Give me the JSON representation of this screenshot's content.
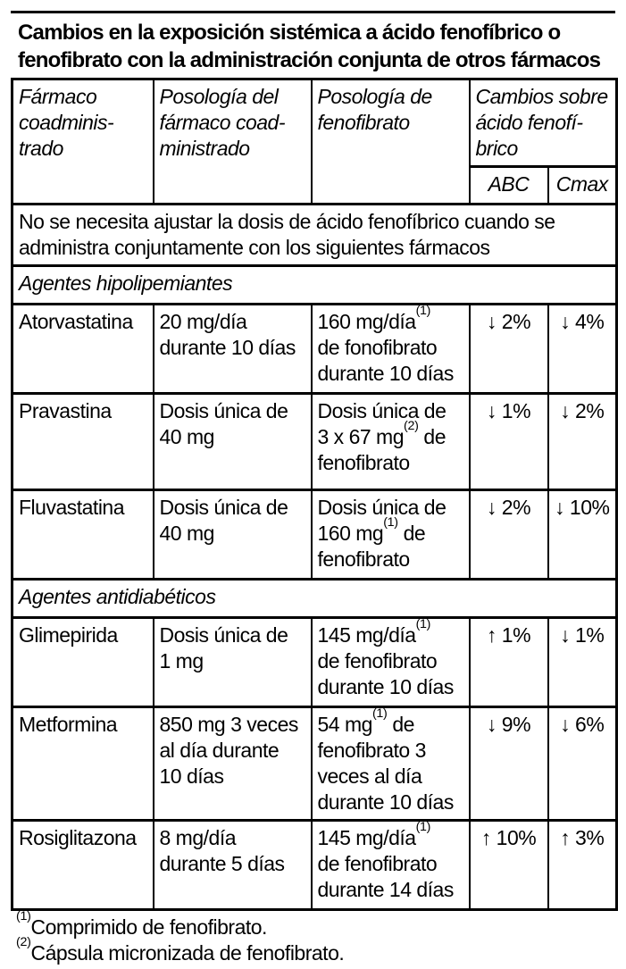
{
  "page": {
    "title": "Cambios en la exposición sistémica a ácido fenofíbrico o\nfenofibrato con la administración conjunta de otros fármacos"
  },
  "table": {
    "header": {
      "drug_col": "Fármaco\ncoadminis-\ntrado",
      "co_dose_col": "Posología del\nfármaco coad-\nministrado",
      "feno_dose_col": "Posología de\nfenofibrato",
      "changes_col": "Cambios sobre\nácido fenofí-\nbrico",
      "abc_col": "ABC",
      "cmax_col": "Cmax"
    },
    "note_row": "No se necesita ajustar la dosis de ácido fenofíbrico cuando se\nadministra conjuntamente con los siguientes fármacos",
    "sections": [
      {
        "label": "Agentes hipolipemiantes",
        "rows": [
          {
            "drug": "Atorvastatina",
            "co_dose": "20 mg/día\ndurante 10 días",
            "feno_pre": "160 mg/día",
            "feno_sup": "(1)",
            "feno_post": "\nde fonofibrato\ndurante 10 días",
            "abc": "↓ 2%",
            "cmax": "↓ 4%"
          },
          {
            "drug": "Pravastina",
            "co_dose": "Dosis única de\n40 mg",
            "feno_pre": "Dosis única de\n3 x 67 mg",
            "feno_sup": "(2)",
            "feno_post": " de\nfenofibrato",
            "abc": "↓ 1%",
            "cmax": "↓ 2%"
          },
          {
            "drug": "Fluvastatina",
            "co_dose": "Dosis única de\n40 mg",
            "feno_pre": "Dosis única de\n160 mg",
            "feno_sup": "(1)",
            "feno_post": " de\nfenofibrato",
            "abc": "↓ 2%",
            "cmax": "↓ 10%"
          }
        ]
      },
      {
        "label": "Agentes antidiabéticos",
        "rows": [
          {
            "drug": "Glimepirida",
            "co_dose": "Dosis única de\n1 mg",
            "feno_pre": "145 mg/día",
            "feno_sup": "(1)",
            "feno_post": "\nde fenofibrato\ndurante 10 días",
            "abc": "↑ 1%",
            "cmax": "↓ 1%"
          },
          {
            "drug": "Metformina",
            "co_dose": "850 mg 3 veces\nal día durante\n10 días",
            "feno_pre": "54 mg",
            "feno_sup": "(1)",
            "feno_post": " de\nfenofibrato 3\nveces al día\ndurante 10 días",
            "abc": "↓ 9%",
            "cmax": "↓ 6%"
          },
          {
            "drug": "Rosiglitazona",
            "co_dose": "8 mg/día\ndurante 5 días",
            "feno_pre": "145 mg/día",
            "feno_sup": "(1)",
            "feno_post": "\nde fenofibrato\ndurante 14 días",
            "abc": "↑ 10%",
            "cmax": "↑ 3%"
          }
        ]
      }
    ],
    "footnotes": [
      {
        "sup": "(1)",
        "text": "Comprimido de fenofibrato."
      },
      {
        "sup": "(2)",
        "text": "Cápsula micronizada de fenofibrato."
      }
    ]
  },
  "colors": {
    "text": "#000000",
    "background": "#ffffff",
    "rule": "#000000"
  }
}
